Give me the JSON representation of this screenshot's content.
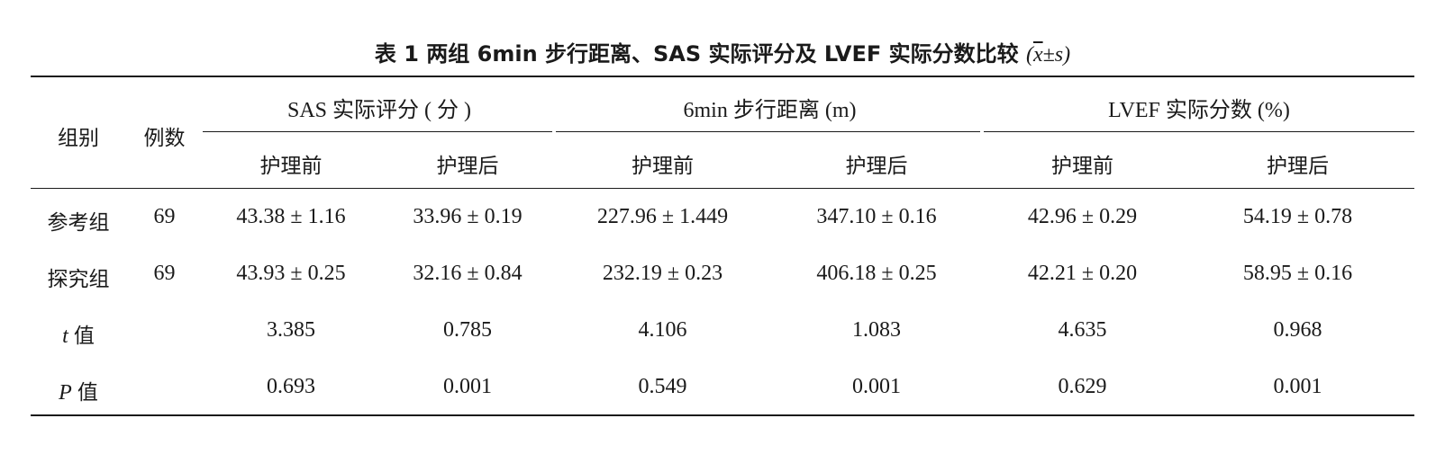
{
  "caption": {
    "label": "表 1",
    "title": "两组 6min 步行距离、SAS 实际评分及 LVEF 实际分数比较",
    "stat_open": "(",
    "stat_mean": "x",
    "stat_pm": "±",
    "stat_s": "s",
    "stat_close": ")"
  },
  "header": {
    "group": "组别",
    "count": "例数",
    "sas": "SAS 实际评分 ( 分 )",
    "walk": "6min 步行距离 (m)",
    "lvef": "LVEF 实际分数 (%)",
    "before": "护理前",
    "after": "护理后"
  },
  "rows": [
    {
      "group": "参考组",
      "n": "69",
      "c1": "43.38 ± 1.16",
      "c2": "33.96 ± 0.19",
      "c3": "227.96 ± 1.449",
      "c4": "347.10 ± 0.16",
      "c5": "42.96 ± 0.29",
      "c6": "54.19 ± 0.78"
    },
    {
      "group": "探究组",
      "n": "69",
      "c1": "43.93 ± 0.25",
      "c2": "32.16 ± 0.84",
      "c3": "232.19 ± 0.23",
      "c4": "406.18 ± 0.25",
      "c5": "42.21 ± 0.20",
      "c6": "58.95 ± 0.16"
    },
    {
      "group_var": "t",
      "group_suffix": "值",
      "n": "",
      "c1": "3.385",
      "c2": "0.785",
      "c3": "4.106",
      "c4": "1.083",
      "c5": "4.635",
      "c6": "0.968"
    },
    {
      "group_var": "P",
      "group_suffix": "值",
      "n": "",
      "c1": "0.693",
      "c2": "0.001",
      "c3": "0.549",
      "c4": "0.001",
      "c5": "0.629",
      "c6": "0.001"
    }
  ]
}
